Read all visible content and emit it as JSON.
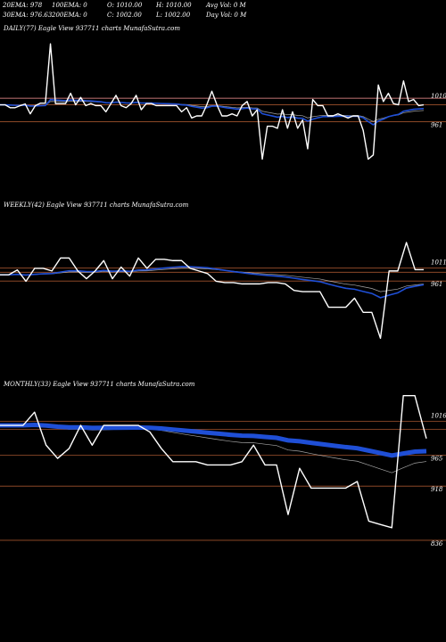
{
  "header": {
    "row1": [
      {
        "label": "20EMA: 978"
      },
      {
        "label": "100EMA: 0"
      },
      {
        "label": "O: 1010.00"
      },
      {
        "label": "H: 1010.00"
      },
      {
        "label": "Avg Vol: 0  M"
      }
    ],
    "row2": [
      {
        "label": "30EMA: 976.63"
      },
      {
        "label": "200EMA: 0"
      },
      {
        "label": "C: 1002.00"
      },
      {
        "label": "L: 1002.00"
      },
      {
        "label": "Day Vol: 0  M"
      }
    ]
  },
  "colors": {
    "background": "#000000",
    "price": "#ffffff",
    "ema_blue": "#1f4fd6",
    "level_line": "#a0522d",
    "level_pink": "#ff9999",
    "ma_grey": "#cfcfcf"
  },
  "chart_data": [
    {
      "type": "line",
      "title": "DAILY(77) Eagle  View  937711 charts MunafaSutra.com",
      "price_labels": [
        "1010",
        "961"
      ],
      "ylim": [
        780,
        1170
      ],
      "level_lines": [
        1018,
        1002,
        961
      ],
      "series": [
        {
          "values": [
            1002,
            1002,
            995,
            995,
            1000,
            1004,
            980,
            1000,
            1006,
            1006,
            1150,
            1005,
            1005,
            1005,
            1030,
            1002,
            1020,
            1000,
            1005,
            1000,
            1000,
            985,
            1005,
            1025,
            1000,
            995,
            1005,
            1025,
            990,
            1005,
            1005,
            1000,
            1000,
            1000,
            1000,
            1000,
            985,
            995,
            970,
            975,
            975,
            1002,
            1035,
            1002,
            975,
            975,
            980,
            975,
            1000,
            1010,
            975,
            990,
            870,
            950,
            950,
            945,
            990,
            945,
            985,
            945,
            965,
            895,
            1015,
            1000,
            1000,
            975,
            975,
            980,
            975,
            970,
            975,
            975,
            940,
            870,
            880,
            1050,
            1010,
            1030,
            1005,
            1002,
            1060,
            1010,
            1015,
            1000,
            1002
          ]
        }
      ]
    },
    {
      "type": "line",
      "title": "WEEKLY(42) Eagle  View  937711 charts MunafaSutra.com",
      "price_labels": [
        "1011",
        "961"
      ],
      "ylim": [
        600,
        1220
      ],
      "level_lines": [
        1011,
        995,
        961
      ],
      "series": [
        {
          "values": [
            985,
            985,
            1004,
            960,
            1010,
            1010,
            1000,
            1050,
            1050,
            1000,
            970,
            1000,
            1040,
            970,
            1015,
            980,
            1050,
            1010,
            1045,
            1045,
            1040,
            1040,
            1010,
            1000,
            990,
            960,
            955,
            955,
            950,
            950,
            950,
            955,
            955,
            950,
            925,
            920,
            920,
            920,
            860,
            860,
            860,
            895,
            840,
            840,
            740,
            1000,
            1000,
            1110,
            1005,
            1005
          ]
        }
      ]
    },
    {
      "type": "line",
      "title": "MONTHLY(33) Eagle  View  937711 charts MunafaSutra.com",
      "price_labels": [
        "1016",
        "965",
        "918",
        "836"
      ],
      "ylim": [
        790,
        1060
      ],
      "level_lines": [
        1016,
        1004,
        965,
        918,
        836
      ],
      "series": [
        {
          "values": [
            1010,
            1010,
            1010,
            1030,
            980,
            960,
            975,
            1010,
            980,
            1010,
            1010,
            1010,
            1010,
            1000,
            975,
            955,
            955,
            955,
            950,
            950,
            950,
            955,
            980,
            950,
            950,
            875,
            945,
            915,
            915,
            915,
            915,
            925,
            865,
            860,
            855,
            1055,
            1055,
            990
          ]
        }
      ]
    }
  ]
}
